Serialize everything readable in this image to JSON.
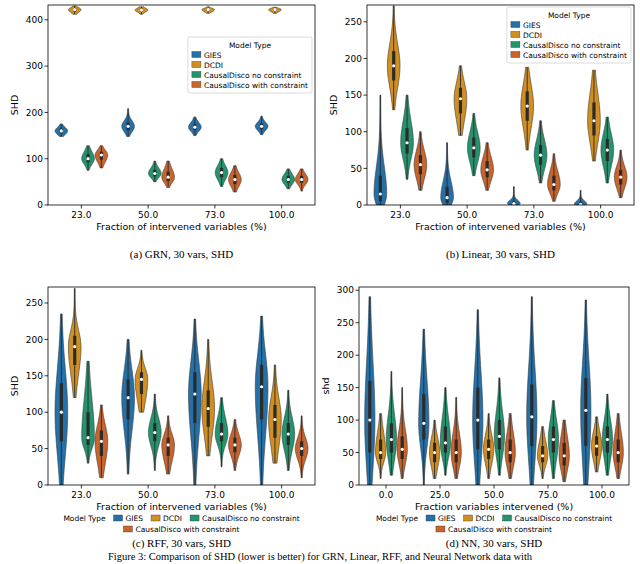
{
  "caption": "Figure 3: Comparison of SHD (lower is better) for GRN, Linear, RFF, and Neural Network data with",
  "chart_data": [
    {
      "type": "violin",
      "title": "(a) GRN, 30 vars, SHD",
      "x_label": "Fraction of intervened variables (%)",
      "y_label": "SHD",
      "legend_title": "Model Type",
      "legend": "center right",
      "categories": [
        "23.0",
        "50.0",
        "73.0",
        "100.0"
      ],
      "ylim": [
        0,
        432
      ],
      "yticks": [
        0,
        100,
        200,
        300,
        400
      ],
      "series": [
        {
          "name": "GIES",
          "color": "#2371a8",
          "values": [
            160,
            170,
            168,
            170
          ],
          "q1": [
            155,
            162,
            162,
            164
          ],
          "q3": [
            165,
            178,
            175,
            176
          ],
          "min": [
            148,
            148,
            150,
            152
          ],
          "max": [
            175,
            208,
            190,
            192
          ]
        },
        {
          "name": "DCDI",
          "color": "#d18f22",
          "values": [
            422,
            421,
            422,
            422
          ],
          "q1": [
            418,
            418,
            419,
            419
          ],
          "q3": [
            425,
            424,
            424,
            424
          ],
          "min": [
            412,
            412,
            414,
            414
          ],
          "max": [
            430,
            428,
            428,
            427
          ]
        },
        {
          "name": "CausalDisco no constraint",
          "color": "#24946f",
          "values": [
            100,
            68,
            70,
            55
          ],
          "q1": [
            92,
            62,
            60,
            48
          ],
          "q3": [
            110,
            76,
            80,
            63
          ],
          "min": [
            75,
            50,
            40,
            35
          ],
          "max": [
            128,
            95,
            100,
            78
          ]
        },
        {
          "name": "CausalDisco with constraint",
          "color": "#c8642c",
          "values": [
            108,
            60,
            55,
            55
          ],
          "q1": [
            98,
            52,
            45,
            48
          ],
          "q3": [
            115,
            72,
            65,
            63
          ],
          "min": [
            80,
            38,
            28,
            30
          ],
          "max": [
            128,
            95,
            85,
            78
          ]
        }
      ]
    },
    {
      "type": "violin",
      "title": "(b) Linear, 30 vars, SHD",
      "x_label": "Fraction of intervened variables (%)",
      "y_label": "SHD",
      "legend_title": "Model Type",
      "legend": "upper right",
      "categories": [
        "23.0",
        "50.0",
        "73.0",
        "100.0"
      ],
      "ylim": [
        0,
        273
      ],
      "yticks": [
        0,
        50,
        100,
        150,
        200,
        250
      ],
      "series": [
        {
          "name": "GIES",
          "color": "#2371a8",
          "values": [
            15,
            10,
            2,
            1
          ],
          "q1": [
            5,
            3,
            0,
            0
          ],
          "q3": [
            40,
            25,
            5,
            4
          ],
          "min": [
            0,
            0,
            0,
            0
          ],
          "max": [
            150,
            85,
            25,
            20
          ]
        },
        {
          "name": "DCDI",
          "color": "#d18f22",
          "values": [
            190,
            145,
            135,
            115
          ],
          "q1": [
            170,
            125,
            115,
            95
          ],
          "q3": [
            210,
            160,
            155,
            140
          ],
          "min": [
            130,
            95,
            75,
            60
          ],
          "max": [
            272,
            190,
            188,
            184
          ]
        },
        {
          "name": "CausalDisco no constraint",
          "color": "#24946f",
          "values": [
            85,
            78,
            68,
            75
          ],
          "q1": [
            70,
            65,
            55,
            60
          ],
          "q3": [
            105,
            92,
            82,
            90
          ],
          "min": [
            35,
            40,
            30,
            30
          ],
          "max": [
            150,
            125,
            115,
            120
          ]
        },
        {
          "name": "CausalDisco with constraint",
          "color": "#c8642c",
          "values": [
            55,
            48,
            28,
            38
          ],
          "q1": [
            42,
            38,
            20,
            28
          ],
          "q3": [
            68,
            60,
            40,
            48
          ],
          "min": [
            20,
            20,
            5,
            10
          ],
          "max": [
            100,
            85,
            70,
            75
          ]
        }
      ]
    },
    {
      "type": "violin",
      "title": "(c) RFF, 30 vars, SHD",
      "x_label": "Fraction of intervened variables (%)",
      "y_label": "SHD",
      "legend_title": "Model Type",
      "legend": "bottom",
      "categories": [
        "23.0",
        "50.0",
        "73.0",
        "100.0"
      ],
      "ylim": [
        0,
        272
      ],
      "yticks": [
        0,
        50,
        100,
        150,
        200,
        250
      ],
      "series": [
        {
          "name": "GIES",
          "color": "#2371a8",
          "values": [
            100,
            120,
            125,
            135
          ],
          "q1": [
            60,
            90,
            85,
            90
          ],
          "q3": [
            140,
            145,
            155,
            165
          ],
          "min": [
            0,
            15,
            0,
            0
          ],
          "max": [
            235,
            200,
            228,
            232
          ]
        },
        {
          "name": "DCDI",
          "color": "#d18f22",
          "values": [
            190,
            145,
            105,
            90
          ],
          "q1": [
            165,
            125,
            80,
            65
          ],
          "q3": [
            205,
            155,
            130,
            110
          ],
          "min": [
            120,
            100,
            40,
            30
          ],
          "max": [
            270,
            185,
            200,
            165
          ]
        },
        {
          "name": "CausalDisco no constraint",
          "color": "#24946f",
          "values": [
            65,
            72,
            70,
            70
          ],
          "q1": [
            55,
            60,
            60,
            55
          ],
          "q3": [
            100,
            85,
            85,
            85
          ],
          "min": [
            30,
            20,
            25,
            20
          ],
          "max": [
            170,
            125,
            120,
            130
          ]
        },
        {
          "name": "CausalDisco with constraint",
          "color": "#c8642c",
          "values": [
            60,
            55,
            55,
            50
          ],
          "q1": [
            40,
            40,
            45,
            40
          ],
          "q3": [
            75,
            65,
            65,
            60
          ],
          "min": [
            10,
            15,
            20,
            10
          ],
          "max": [
            110,
            95,
            90,
            95
          ]
        }
      ]
    },
    {
      "type": "violin",
      "title": "(d) NN, 30 vars, SHD",
      "x_label": "Fraction variables intervened (%)",
      "y_label": "shd",
      "legend_title": "Model Type",
      "legend": "bottom",
      "categories": [
        "0.0",
        "25.0",
        "50.0",
        "75.0",
        "100.0"
      ],
      "ylim": [
        0,
        305
      ],
      "yticks": [
        0,
        50,
        100,
        150,
        200,
        250,
        300
      ],
      "series": [
        {
          "name": "GIES",
          "color": "#2371a8",
          "values": [
            100,
            95,
            100,
            105,
            115
          ],
          "q1": [
            50,
            70,
            55,
            60,
            60
          ],
          "q3": [
            160,
            140,
            150,
            155,
            165
          ],
          "min": [
            0,
            0,
            0,
            0,
            0
          ],
          "max": [
            290,
            240,
            270,
            290,
            285
          ]
        },
        {
          "name": "DCDI",
          "color": "#d18f22",
          "values": [
            50,
            50,
            55,
            45,
            60
          ],
          "q1": [
            40,
            35,
            40,
            35,
            45
          ],
          "q3": [
            70,
            65,
            70,
            60,
            75
          ],
          "min": [
            10,
            10,
            10,
            10,
            20
          ],
          "max": [
            110,
            100,
            110,
            90,
            105
          ]
        },
        {
          "name": "CausalDisco no constraint",
          "color": "#24946f",
          "values": [
            70,
            65,
            75,
            70,
            70
          ],
          "q1": [
            50,
            50,
            55,
            50,
            50
          ],
          "q3": [
            95,
            90,
            100,
            90,
            90
          ],
          "min": [
            15,
            15,
            15,
            10,
            15
          ],
          "max": [
            175,
            150,
            165,
            130,
            140
          ]
        },
        {
          "name": "CausalDisco with constraint",
          "color": "#c8642c",
          "values": [
            55,
            50,
            50,
            45,
            50
          ],
          "q1": [
            40,
            35,
            35,
            30,
            35
          ],
          "q3": [
            75,
            70,
            70,
            65,
            70
          ],
          "min": [
            10,
            10,
            10,
            5,
            10
          ],
          "max": [
            150,
            135,
            110,
            100,
            110
          ]
        }
      ]
    }
  ]
}
